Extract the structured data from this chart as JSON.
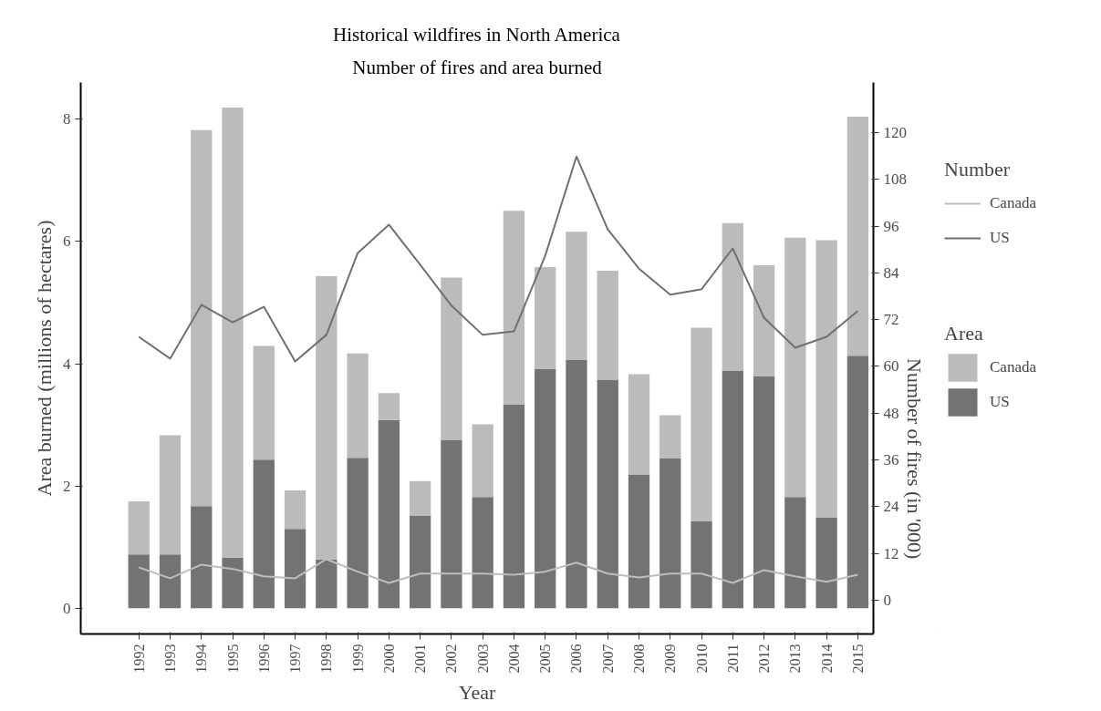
{
  "chart_data": {
    "type": "bar",
    "title": "Historical wildfires in North America",
    "subtitle": "Number of fires and area burned",
    "xlabel": "Year",
    "ylabel": "Area burned (millions of hectares)",
    "y2label": "Number of fires (in '000)",
    "legend_title": [
      "Number",
      "Area"
    ],
    "categories": [
      "1992",
      "1993",
      "1994",
      "1995",
      "1996",
      "1997",
      "1998",
      "1999",
      "2000",
      "2001",
      "2002",
      "2003",
      "2004",
      "2005",
      "2006",
      "2007",
      "2008",
      "2009",
      "2010",
      "2011",
      "2012",
      "2013",
      "2014",
      "2015"
    ],
    "stacked": true,
    "series": [
      {
        "name": "Canada",
        "type": "line",
        "axis": "y2",
        "color": "#bdbdbd",
        "values": [
          8.4,
          5.6,
          9.1,
          8.0,
          6.1,
          5.6,
          10.5,
          7.3,
          4.4,
          6.8,
          6.8,
          6.8,
          6.5,
          7.3,
          9.6,
          6.8,
          5.8,
          6.8,
          6.8,
          4.4,
          7.7,
          6.1,
          4.7,
          6.5
        ]
      },
      {
        "name": "US",
        "type": "line",
        "axis": "y2",
        "color": "#707070",
        "values": [
          67.6,
          62.0,
          75.8,
          71.3,
          75.3,
          61.3,
          68.1,
          89.1,
          96.4,
          86.1,
          75.6,
          68.1,
          69.0,
          88.4,
          113.9,
          95.2,
          85.1,
          78.4,
          79.8,
          90.3,
          72.5,
          64.8,
          67.6,
          74.2
        ]
      },
      {
        "name": "US",
        "color": "#737373",
        "values": [
          0.88,
          0.88,
          1.67,
          0.83,
          2.43,
          1.3,
          0.8,
          2.46,
          3.08,
          1.51,
          2.75,
          1.82,
          3.33,
          3.91,
          4.06,
          3.74,
          2.19,
          2.45,
          1.42,
          3.89,
          3.8,
          1.82,
          1.48,
          4.13
        ]
      },
      {
        "name": "Canada",
        "color": "#bbbbbb",
        "values": [
          0.87,
          1.95,
          6.15,
          7.36,
          1.86,
          0.63,
          4.63,
          1.71,
          0.44,
          0.57,
          2.66,
          1.19,
          3.17,
          1.67,
          2.1,
          1.78,
          1.64,
          0.71,
          3.17,
          2.41,
          1.81,
          4.24,
          4.54,
          3.91
        ]
      }
    ],
    "ylim": [
      -0.42,
      8.6
    ],
    "yticks": [
      0,
      2,
      4,
      6,
      8
    ],
    "y2lim": [
      -8.7,
      132.9
    ],
    "y2ticks": [
      0,
      12,
      24,
      36,
      48,
      60,
      72,
      84,
      96,
      108,
      120
    ],
    "grid": false,
    "legend": "right"
  }
}
